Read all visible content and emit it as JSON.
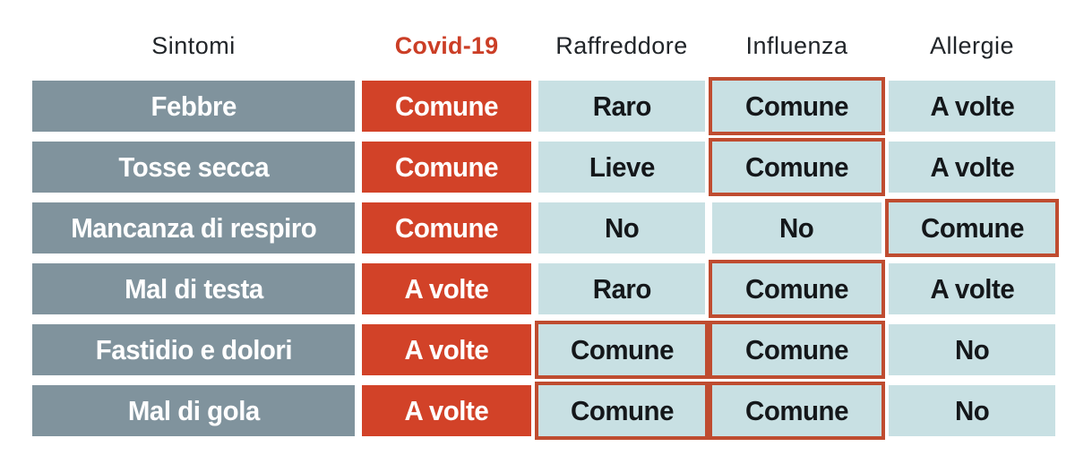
{
  "colors": {
    "symptom_cell_bg": "#80939d",
    "covid_cell_bg": "#d24228",
    "value_cell_bg": "#c8e0e3",
    "highlight_border": "#bf4c30",
    "covid_header_text": "#cb3e26",
    "header_text": "#212529",
    "value_text": "#14171a",
    "inverse_text": "#ffffff"
  },
  "chart_data": {
    "type": "table",
    "columns": [
      "Sintomi",
      "Covid-19",
      "Raffreddore",
      "Influenza",
      "Allergie"
    ],
    "rows": [
      {
        "cells": [
          "Febbre",
          "Comune",
          "Raro",
          "Comune",
          "A volte"
        ],
        "highlighted_columns": [
          3
        ]
      },
      {
        "cells": [
          "Tosse secca",
          "Comune",
          "Lieve",
          "Comune",
          "A volte"
        ],
        "highlighted_columns": [
          3
        ]
      },
      {
        "cells": [
          "Mancanza di respiro",
          "Comune",
          "No",
          "No",
          "Comune"
        ],
        "highlighted_columns": [
          4
        ]
      },
      {
        "cells": [
          "Mal di testa",
          "A volte",
          "Raro",
          "Comune",
          "A volte"
        ],
        "highlighted_columns": [
          3
        ]
      },
      {
        "cells": [
          "Fastidio e dolori",
          "A volte",
          "Comune",
          "Comune",
          "No"
        ],
        "highlighted_columns": [
          2,
          3
        ]
      },
      {
        "cells": [
          "Mal di gola",
          "A volte",
          "Comune",
          "Comune",
          "No"
        ],
        "highlighted_columns": [
          2,
          3
        ]
      }
    ],
    "legend_position": "none",
    "grid": false
  }
}
